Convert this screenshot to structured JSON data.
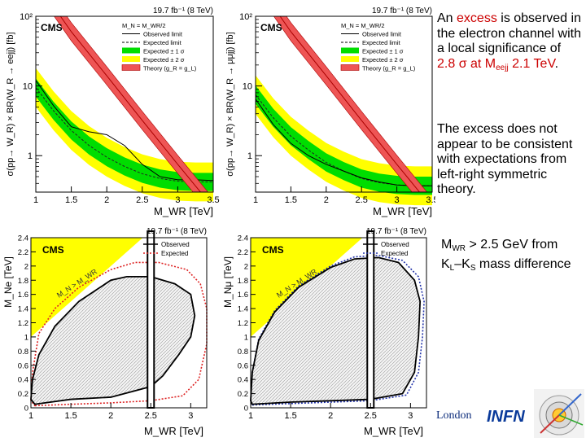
{
  "text": {
    "para1_a": "An ",
    "para1_excess": "excess",
    "para1_b": " is observed in the electron channel with a local significance of ",
    "para1_sig": "2.8 σ at M",
    "para1_sub": "eejj",
    "para1_mass": " 2.1 TeV",
    "para1_end": ".",
    "para2": "The excess does not appear to be consistent with expectations from left-right symmetric theory.",
    "para3_a": "M",
    "para3_sub1": "WR",
    "para3_b": " > 2.5 GeV from K",
    "para3_sub2": "L",
    "para3_c": "–K",
    "para3_sub3": "S",
    "para3_d": " mass difference",
    "footer_london": "London",
    "footer_infn": "INFN"
  },
  "colors": {
    "accent_red": "#cc0000",
    "green_band": "#00dd00",
    "yellow_band": "#ffff00",
    "theory": "#dd2222"
  },
  "chart_data": [
    {
      "type": "line",
      "id": "top-left",
      "lumi": "19.7 fb⁻¹ (8 TeV)",
      "cms": "CMS",
      "ylabel": "σ(pp→ W_R) × BR(W_R → eejj) [fb]",
      "xlabel": "M_WR [TeV]",
      "xlim": [
        1,
        3.5
      ],
      "ylim_log": [
        0.3,
        100
      ],
      "xticks": [
        "1",
        "1.5",
        "2",
        "2.5",
        "3",
        "3.5"
      ],
      "yticks": [
        "1",
        "10",
        "10²"
      ],
      "ytick_vals": [
        1,
        10,
        100
      ],
      "legend": [
        "M_N = M_WR/2",
        "Observed limit",
        "Expected limit",
        "Expected ± 1 σ",
        "Expected ± 2 σ",
        "Theory (g_R = g_L)"
      ],
      "x": [
        1.0,
        1.25,
        1.5,
        1.75,
        2.0,
        2.25,
        2.5,
        2.75,
        3.0,
        3.25,
        3.5
      ],
      "expected": [
        9.5,
        4.4,
        2.3,
        1.4,
        0.95,
        0.7,
        0.55,
        0.47,
        0.43,
        0.42,
        0.42
      ],
      "observed": [
        12,
        5.2,
        2.6,
        2.2,
        2.0,
        1.4,
        0.75,
        0.5,
        0.45,
        0.45,
        0.44
      ],
      "theory_x": [
        1.0,
        1.5,
        2.0,
        2.5,
        3.0,
        3.5
      ],
      "theory": [
        320,
        60,
        14,
        3.2,
        0.75,
        0.18
      ]
    },
    {
      "type": "line",
      "id": "top-right",
      "lumi": "19.7 fb⁻¹ (8 TeV)",
      "cms": "CMS",
      "ylabel": "σ(pp→ W_R) × BR(W_R → μμjj) [fb]",
      "xlabel": "M_WR [TeV]",
      "xlim": [
        1,
        3.5
      ],
      "ylim_log": [
        0.3,
        100
      ],
      "xticks": [
        "1",
        "1.5",
        "2",
        "2.5",
        "3",
        "3.5"
      ],
      "yticks": [
        "1",
        "10",
        "10²"
      ],
      "ytick_vals": [
        1,
        10,
        100
      ],
      "legend": [
        "M_N = M_WR/2",
        "Observed limit",
        "Expected limit",
        "Expected ± 1 σ",
        "Expected ± 2 σ",
        "Theory (g_R = g_L)"
      ],
      "x": [
        1.0,
        1.25,
        1.5,
        1.75,
        2.0,
        2.25,
        2.5,
        2.75,
        3.0,
        3.25,
        3.5
      ],
      "expected": [
        7.5,
        3.5,
        1.9,
        1.2,
        0.8,
        0.6,
        0.47,
        0.41,
        0.38,
        0.37,
        0.37
      ],
      "observed": [
        6.5,
        2.8,
        1.5,
        1.0,
        0.75,
        0.6,
        0.48,
        0.42,
        0.38,
        0.37,
        0.37
      ],
      "theory_x": [
        1.0,
        1.5,
        2.0,
        2.5,
        3.0,
        3.5
      ],
      "theory": [
        320,
        60,
        14,
        3.2,
        0.75,
        0.18
      ]
    },
    {
      "type": "scatter",
      "id": "bottom-left",
      "lumi": "19.7 fb⁻¹ (8 TeV)",
      "cms": "CMS",
      "ylabel": "M_Ne [TeV]",
      "xlabel": "M_WR [TeV]",
      "xlim": [
        1,
        3.2
      ],
      "ylim": [
        0,
        2.4
      ],
      "xticks": [
        "1",
        "1.5",
        "2",
        "2.5",
        "3"
      ],
      "yticks": [
        "0",
        "0.2",
        "0.4",
        "0.6",
        "0.8",
        "1",
        "1.2",
        "1.4",
        "1.6",
        "1.8",
        "2",
        "2.2",
        "2.4"
      ],
      "forbidden_label": "M_N > M_WR",
      "legend": [
        "Observed",
        "Expected"
      ],
      "observed_contour": [
        [
          1.05,
          0.05
        ],
        [
          1.5,
          0.12
        ],
        [
          2.0,
          0.15
        ],
        [
          2.5,
          0.3
        ],
        [
          2.65,
          0.45
        ],
        [
          2.85,
          0.75
        ],
        [
          3.0,
          1.0
        ],
        [
          3.05,
          1.3
        ],
        [
          3.0,
          1.6
        ],
        [
          2.8,
          1.75
        ],
        [
          2.5,
          1.85
        ],
        [
          2.2,
          1.85
        ],
        [
          2.0,
          1.8
        ],
        [
          1.6,
          1.5
        ],
        [
          1.3,
          1.15
        ],
        [
          1.1,
          0.75
        ],
        [
          1.02,
          0.4
        ],
        [
          1.0,
          0.12
        ]
      ],
      "expected_contour": [
        [
          1.05,
          0.03
        ],
        [
          1.5,
          0.05
        ],
        [
          2.0,
          0.07
        ],
        [
          2.5,
          0.1
        ],
        [
          2.9,
          0.17
        ],
        [
          3.1,
          0.4
        ],
        [
          3.2,
          0.9
        ],
        [
          3.2,
          1.4
        ],
        [
          3.12,
          1.75
        ],
        [
          2.95,
          1.95
        ],
        [
          2.6,
          2.05
        ],
        [
          2.3,
          2.05
        ],
        [
          2.0,
          1.95
        ],
        [
          1.6,
          1.7
        ],
        [
          1.3,
          1.4
        ],
        [
          1.1,
          1.05
        ],
        [
          1.02,
          0.5
        ],
        [
          1.0,
          0.1
        ]
      ],
      "vline_x": 2.5
    },
    {
      "type": "scatter",
      "id": "bottom-right",
      "lumi": "19.7 fb⁻¹ (8 TeV)",
      "cms": "CMS",
      "ylabel": "M_Nμ [TeV]",
      "xlabel": "M_WR [TeV]",
      "xlim": [
        1,
        3.2
      ],
      "ylim": [
        0,
        2.4
      ],
      "xticks": [
        "1",
        "1.5",
        "2",
        "2.5",
        "3"
      ],
      "yticks": [
        "0",
        "0.2",
        "0.4",
        "0.6",
        "0.8",
        "1",
        "1.2",
        "1.4",
        "1.6",
        "1.8",
        "2",
        "2.2",
        "2.4"
      ],
      "forbidden_label": "M_N > M_WR",
      "legend": [
        "Observed",
        "Expected"
      ],
      "observed_contour": [
        [
          1.02,
          0.05
        ],
        [
          1.5,
          0.08
        ],
        [
          2.0,
          0.1
        ],
        [
          2.5,
          0.12
        ],
        [
          2.9,
          0.2
        ],
        [
          3.05,
          0.5
        ],
        [
          3.1,
          1.0
        ],
        [
          3.12,
          1.5
        ],
        [
          3.05,
          1.8
        ],
        [
          2.85,
          2.05
        ],
        [
          2.6,
          2.12
        ],
        [
          2.3,
          2.1
        ],
        [
          2.0,
          1.98
        ],
        [
          1.6,
          1.7
        ],
        [
          1.3,
          1.35
        ],
        [
          1.1,
          0.95
        ],
        [
          1.02,
          0.5
        ],
        [
          1.0,
          0.1
        ]
      ],
      "expected_contour": [
        [
          1.02,
          0.04
        ],
        [
          1.5,
          0.06
        ],
        [
          2.0,
          0.08
        ],
        [
          2.5,
          0.1
        ],
        [
          2.95,
          0.18
        ],
        [
          3.1,
          0.5
        ],
        [
          3.15,
          1.0
        ],
        [
          3.17,
          1.5
        ],
        [
          3.1,
          1.85
        ],
        [
          2.9,
          2.08
        ],
        [
          2.6,
          2.15
        ],
        [
          2.3,
          2.13
        ],
        [
          2.0,
          2.0
        ],
        [
          1.6,
          1.72
        ],
        [
          1.3,
          1.37
        ],
        [
          1.1,
          0.97
        ],
        [
          1.02,
          0.5
        ],
        [
          1.0,
          0.1
        ]
      ],
      "vline_x": 2.5
    }
  ]
}
